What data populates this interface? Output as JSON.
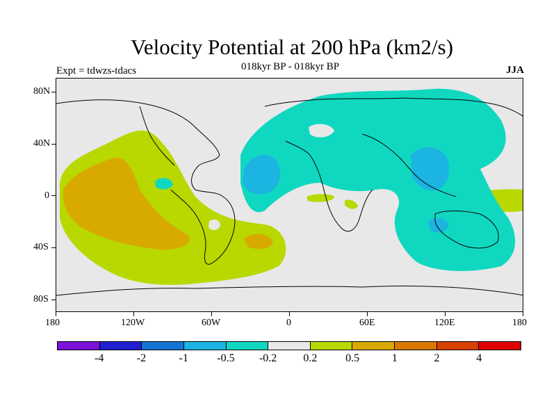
{
  "title": "Velocity Potential at 200 hPa (km2/s)",
  "subtitle": "018kyr BP - 018kyr BP",
  "left_label": "Expt = tdwzs-tdacs",
  "right_label": "JJA",
  "y_labels": [
    "80N",
    "40N",
    "0",
    "40S",
    "80S"
  ],
  "x_labels": [
    "180",
    "120W",
    "60W",
    "0",
    "60E",
    "120E",
    "180"
  ],
  "colorbar": {
    "labels": [
      "-4",
      "-2",
      "-1",
      "-0.5",
      "-0.2",
      "0.2",
      "0.5",
      "1",
      "2",
      "4"
    ],
    "colors": [
      "#7a12d8",
      "#2020d0",
      "#1475d4",
      "#1cb4e0",
      "#10d8c0",
      "#e8e8e8",
      "#b8d800",
      "#d8aa00",
      "#d87800",
      "#d84000",
      "#e00000"
    ]
  },
  "fill_colors": {
    "background": "#e8e8e8",
    "neg_0_2": "#10d8c0",
    "neg_0_5": "#1cb4e0",
    "pos_0_2": "#b8d800",
    "pos_0_5": "#d8aa00"
  }
}
